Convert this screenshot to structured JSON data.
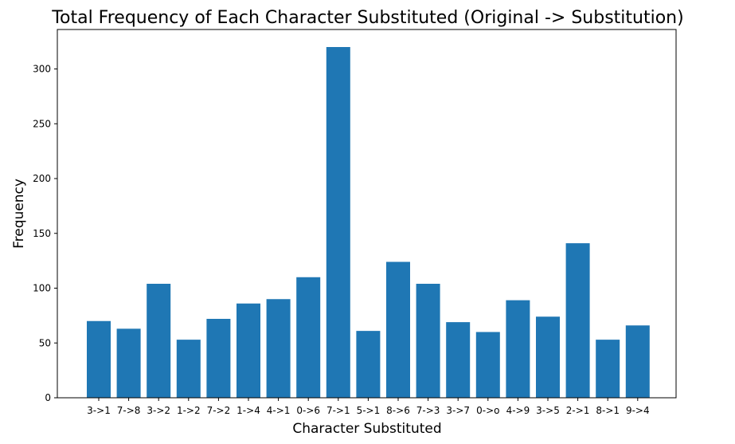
{
  "chart_data": {
    "type": "bar",
    "title": "Total Frequency of Each Character Substituted (Original -> Substitution)",
    "xlabel": "Character Substituted",
    "ylabel": "Frequency",
    "categories": [
      "3->1",
      "7->8",
      "3->2",
      "1->2",
      "7->2",
      "1->4",
      "4->1",
      "0->6",
      "7->1",
      "5->1",
      "8->6",
      "7->3",
      "3->7",
      "0->o",
      "4->9",
      "3->5",
      "2->1",
      "8->1",
      "9->4"
    ],
    "values": [
      70,
      63,
      104,
      53,
      72,
      86,
      90,
      110,
      320,
      61,
      124,
      104,
      69,
      60,
      89,
      74,
      141,
      53,
      66
    ],
    "ylim": [
      0,
      336
    ],
    "yticks": [
      0,
      50,
      100,
      150,
      200,
      250,
      300
    ],
    "bar_color": "#1f77b4",
    "grid": false,
    "legend": "none"
  }
}
